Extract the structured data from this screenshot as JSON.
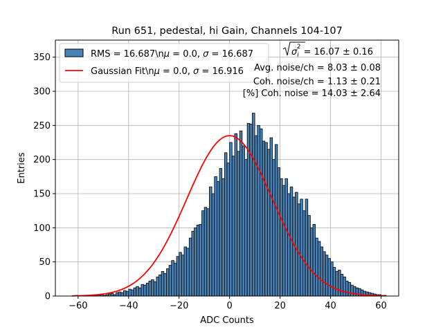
{
  "chart_data": {
    "type": "bar",
    "title": "Run 651, pedestal, hi Gain, Channels 104-107",
    "xlabel": "ADC Counts",
    "ylabel": "Entries",
    "xlim": [
      -69,
      67
    ],
    "ylim": [
      0,
      375
    ],
    "xticks": [
      -60,
      -40,
      -20,
      0,
      20,
      40,
      60
    ],
    "xtick_labels": [
      "−60",
      "−40",
      "−20",
      "0",
      "20",
      "40",
      "60"
    ],
    "yticks": [
      0,
      50,
      100,
      150,
      200,
      250,
      300,
      350
    ],
    "ytick_labels": [
      "0",
      "50",
      "100",
      "150",
      "200",
      "250",
      "300",
      "350"
    ],
    "grid": true,
    "legend_position": "top-left",
    "bin_start": -61,
    "bin_width": 1,
    "values": [
      1,
      0,
      0,
      0,
      0,
      1,
      0,
      1,
      1,
      1,
      2,
      1,
      2,
      3,
      4,
      2,
      5,
      6,
      5,
      8,
      7,
      10,
      9,
      12,
      14,
      12,
      17,
      16,
      19,
      22,
      24,
      21,
      28,
      31,
      36,
      33,
      40,
      45,
      52,
      48,
      58,
      64,
      60,
      72,
      70,
      85,
      95,
      100,
      104,
      105,
      125,
      130,
      128,
      160,
      150,
      175,
      168,
      187,
      172,
      210,
      195,
      225,
      205,
      238,
      212,
      242,
      220,
      200,
      253,
      252,
      268,
      235,
      250,
      245,
      227,
      225,
      215,
      232,
      200,
      222,
      188,
      172,
      162,
      172,
      150,
      160,
      145,
      152,
      135,
      142,
      125,
      142,
      118,
      100,
      105,
      85,
      80,
      72,
      65,
      60,
      55,
      50,
      42,
      36,
      38,
      32,
      28,
      22,
      20,
      16,
      14,
      12,
      11,
      9,
      7,
      6,
      5,
      4,
      3,
      2,
      2,
      1,
      1
    ],
    "series": [
      {
        "name": "RMS = 16.687\\nμ = 0.0, σ = 16.687",
        "kind": "histogram",
        "color": "#4682b4"
      },
      {
        "name": "Gaussian Fit\\nμ = 0.0, σ = 16.916",
        "kind": "line",
        "color": "#ff0000",
        "mu": 0.0,
        "sigma": 16.916,
        "amplitude": 235,
        "x_range": [
          -62.5,
          61.5
        ]
      }
    ],
    "legend_symbols": {
      "rms": {
        "prefix": "RMS = 16.687\\n",
        "mu": "μ",
        "mid": " = 0.0, ",
        "sigma": "σ",
        "suffix": " = 16.687"
      },
      "fit": {
        "prefix": "Gaussian Fit\\n",
        "mu": "μ",
        "mid": " = 0.0, ",
        "sigma": "σ",
        "suffix": " = 16.916"
      }
    },
    "annotations": {
      "sqrt_sigma": {
        "base": "σ",
        "sub": "i",
        "sup": "2",
        "value": " = 16.07 ± 0.16"
      },
      "lines": [
        "Avg. noise/ch = 8.03 ± 0.08",
        "Coh. noise/ch = 1.13 ± 0.21",
        "[%] Coh. noise = 14.03 ± 2.64"
      ]
    }
  },
  "colors": {
    "bar_fill": "#4682b4",
    "bar_edge": "#000000",
    "fit_line": "#ff0000",
    "grid": "#b0b0b0"
  }
}
